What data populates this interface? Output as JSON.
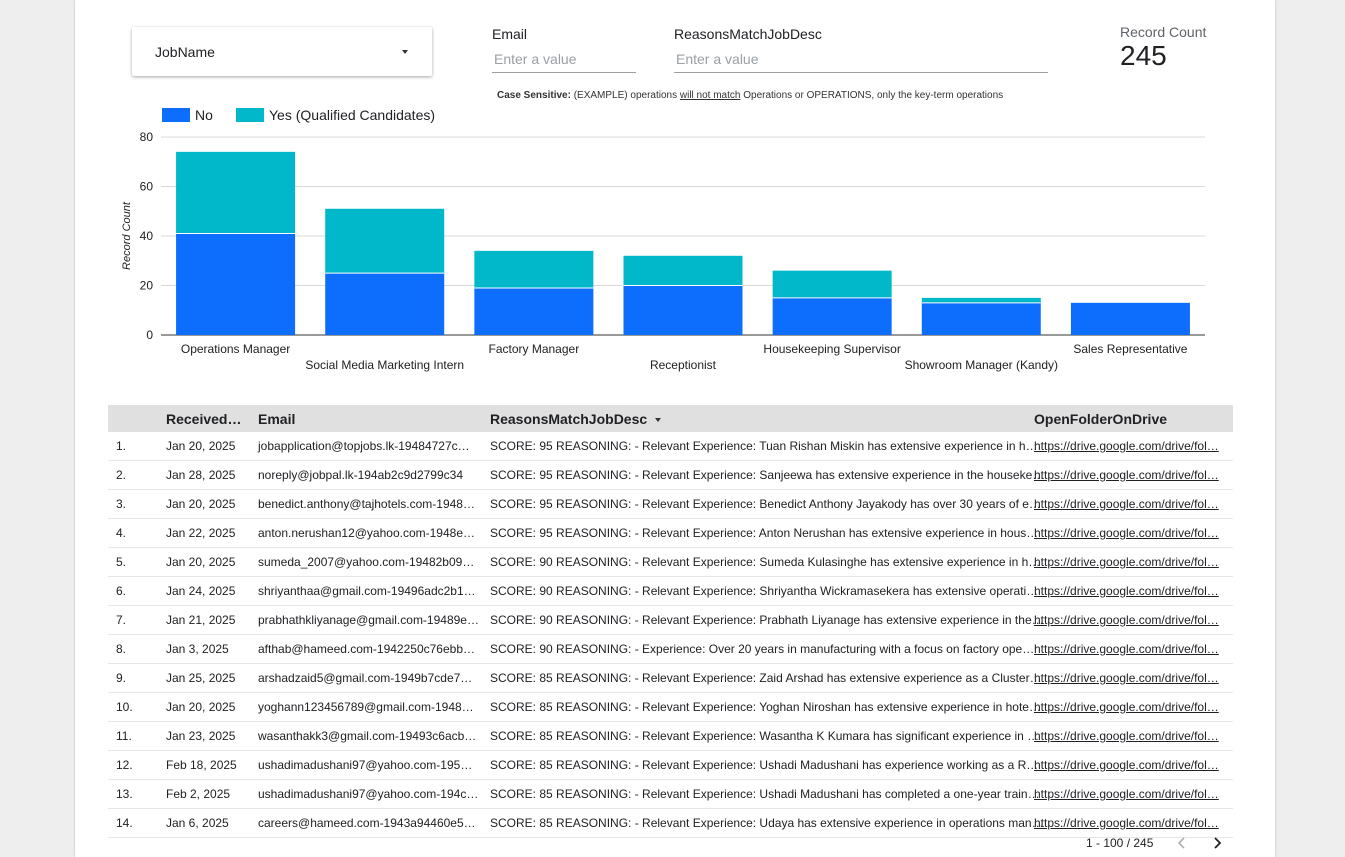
{
  "filters": {
    "jobname_label": "JobName",
    "email_label": "Email",
    "email_placeholder": "Enter a value",
    "reasons_label": "ReasonsMatchJobDesc",
    "reasons_placeholder": "Enter a value",
    "note_bold": "Case Sensitive:",
    "note_part1": " (EXAMPLE) operations ",
    "note_underlined": "will not match",
    "note_part2": " Operations or OPERATIONS, only the key-term operations"
  },
  "scorecard": {
    "label": "Record Count",
    "value": "245"
  },
  "chart_data": {
    "type": "bar",
    "stacked": true,
    "categories": [
      "Operations Manager",
      "Social Media Marketing Intern",
      "Factory Manager",
      "Receptionist",
      "Housekeeping Supervisor",
      "Showroom Manager (Kandy)",
      "Sales Representative"
    ],
    "series": [
      {
        "name": "No",
        "color": "#0d6efd",
        "values": [
          41,
          25,
          19,
          20,
          15,
          13,
          13
        ]
      },
      {
        "name": "Yes (Qualified Candidates)",
        "color": "#00b8c9",
        "values": [
          33,
          26,
          15,
          12,
          11,
          2,
          0
        ]
      }
    ],
    "ylabel": "Record Count",
    "xlabel": "",
    "ylim": [
      0,
      80
    ],
    "yticks": [
      0,
      20,
      40,
      60,
      80
    ],
    "grid": true,
    "legend": "top-left"
  },
  "table": {
    "columns": [
      "Received…",
      "Email",
      "ReasonsMatchJobDesc",
      "OpenFolderOnDrive"
    ],
    "rows": [
      {
        "idx": "1.",
        "date": "Jan 20, 2025",
        "email": "jobapplication@topjobs.lk-19484727c…",
        "reason": "SCORE: 95 REASONING: - Relevant Experience: Tuan Rishan Miskin has extensive experience in h…",
        "link": "https://drive.google.com/drive/fol…"
      },
      {
        "idx": "2.",
        "date": "Jan 28, 2025",
        "email": "noreply@jobpal.lk-194ab2c9d2799c34",
        "reason": "SCORE: 95 REASONING: - Relevant Experience: Sanjeewa has extensive experience in the houseke…",
        "link": "https://drive.google.com/drive/fol…"
      },
      {
        "idx": "3.",
        "date": "Jan 20, 2025",
        "email": "benedict.anthony@tajhotels.com-1948…",
        "reason": "SCORE: 95 REASONING: - Relevant Experience: Benedict Anthony Jayakody has over 30 years of e…",
        "link": "https://drive.google.com/drive/fol…"
      },
      {
        "idx": "4.",
        "date": "Jan 22, 2025",
        "email": "anton.nerushan12@yahoo.com-1948e…",
        "reason": "SCORE: 95 REASONING: - Relevant Experience: Anton Nerushan has extensive experience in hous…",
        "link": "https://drive.google.com/drive/fol…"
      },
      {
        "idx": "5.",
        "date": "Jan 20, 2025",
        "email": "sumeda_2007@yahoo.com-19482b09…",
        "reason": "SCORE: 90 REASONING: - Relevant Experience: Sumeda Kulasinghe has extensive experience in h…",
        "link": "https://drive.google.com/drive/fol…"
      },
      {
        "idx": "6.",
        "date": "Jan 24, 2025",
        "email": "shriyanthaa@gmail.com-19496adc2b1…",
        "reason": "SCORE: 90 REASONING: - Relevant Experience: Shriyantha Wickramasekera has extensive operati…",
        "link": "https://drive.google.com/drive/fol…"
      },
      {
        "idx": "7.",
        "date": "Jan 21, 2025",
        "email": "prabhathkliyanage@gmail.com-19489e…",
        "reason": "SCORE: 90 REASONING: - Relevant Experience: Prabhath Liyanage has extensive experience in the…",
        "link": "https://drive.google.com/drive/fol…"
      },
      {
        "idx": "8.",
        "date": "Jan 3, 2025",
        "email": "afthab@hameed.com-1942250c76ebb…",
        "reason": "SCORE: 90 REASONING: - Experience: Over 20 years in manufacturing with a focus on factory ope…",
        "link": "https://drive.google.com/drive/fol…"
      },
      {
        "idx": "9.",
        "date": "Jan 25, 2025",
        "email": "arshadzaid5@gmail.com-1949b7cde7…",
        "reason": "SCORE: 85 REASONING: - Relevant Experience: Zaid Arshad has extensive experience as a Cluster…",
        "link": "https://drive.google.com/drive/fol…"
      },
      {
        "idx": "10.",
        "date": "Jan 20, 2025",
        "email": "yoghann123456789@gmail.com-1948…",
        "reason": "SCORE: 85 REASONING: - Relevant Experience: Yoghan Niroshan has extensive experience in hote…",
        "link": "https://drive.google.com/drive/fol…"
      },
      {
        "idx": "11.",
        "date": "Jan 23, 2025",
        "email": "wasanthakk3@gmail.com-19493c6acb…",
        "reason": "SCORE: 85 REASONING: - Relevant Experience: Wasantha K Kumara has significant experience in …",
        "link": "https://drive.google.com/drive/fol…"
      },
      {
        "idx": "12.",
        "date": "Feb 18, 2025",
        "email": "ushadimadushani97@yahoo.com-195…",
        "reason": "SCORE: 85 REASONING: - Relevant Experience: Ushadi Madushani has experience working as a R…",
        "link": "https://drive.google.com/drive/fol…"
      },
      {
        "idx": "13.",
        "date": "Feb 2, 2025",
        "email": "ushadimadushani97@yahoo.com-194c…",
        "reason": "SCORE: 85 REASONING: - Relevant Experience: Ushadi Madushani has completed a one-year train…",
        "link": "https://drive.google.com/drive/fol…"
      },
      {
        "idx": "14.",
        "date": "Jan 6, 2025",
        "email": "careers@hameed.com-1943a94460e5…",
        "reason": "SCORE: 85 REASONING: - Relevant Experience: Udaya has extensive experience in operations man…",
        "link": "https://drive.google.com/drive/fol…"
      }
    ]
  },
  "pagination": {
    "text": "1 - 100 / 245",
    "prev_icon": "chevron-left-icon",
    "next_icon": "chevron-right-icon"
  }
}
